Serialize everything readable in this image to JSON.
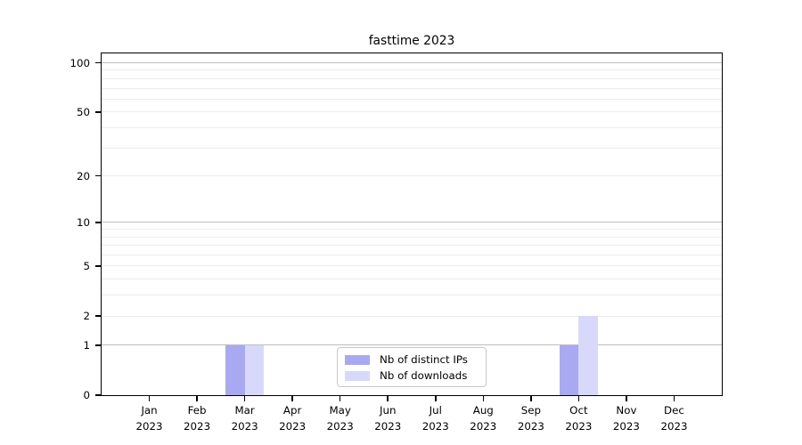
{
  "title": "fasttime 2023",
  "colors": {
    "background": "#ffffff",
    "spine": "#000000",
    "grid_major": "#bdbdbd",
    "grid_minor": "#ececec",
    "bar_distinct_ips": "#a9a9f2",
    "bar_downloads": "#d8d9fa",
    "legend_border": "#c9c9c9"
  },
  "legend": {
    "items": [
      {
        "label": "Nb of distinct IPs",
        "color": "#a9a9f2"
      },
      {
        "label": "Nb of downloads",
        "color": "#d8d9fa"
      }
    ]
  },
  "chart_data": {
    "type": "bar",
    "title": "fasttime 2023",
    "categories": [
      "Jan\n2023",
      "Feb\n2023",
      "Mar\n2023",
      "Apr\n2023",
      "May\n2023",
      "Jun\n2023",
      "Jul\n2023",
      "Aug\n2023",
      "Sep\n2023",
      "Oct\n2023",
      "Nov\n2023",
      "Dec\n2023"
    ],
    "series": [
      {
        "name": "Nb of distinct IPs",
        "color": "#a9a9f2",
        "values": [
          0,
          0,
          1,
          0,
          0,
          0,
          0,
          0,
          0,
          1,
          0,
          0
        ]
      },
      {
        "name": "Nb of downloads",
        "color": "#d8d9fa",
        "values": [
          0,
          0,
          1,
          0,
          0,
          0,
          0,
          0,
          0,
          2,
          0,
          0
        ]
      }
    ],
    "xlabel": "",
    "ylabel": "",
    "yscale": "log1p",
    "ylim": [
      0,
      114
    ],
    "ytick_values": [
      0,
      1,
      2,
      5,
      10,
      20,
      50,
      100
    ],
    "ytick_labels": [
      "0",
      "1",
      "2",
      "5",
      "10",
      "20",
      "50",
      "100"
    ],
    "grid_major_values": [
      1,
      10,
      100
    ],
    "grid_minor_values": [
      2,
      3,
      4,
      5,
      6,
      7,
      8,
      9,
      20,
      30,
      40,
      50,
      60,
      70,
      80,
      90
    ],
    "grid": "horizontal",
    "legend_position": "lower center"
  }
}
